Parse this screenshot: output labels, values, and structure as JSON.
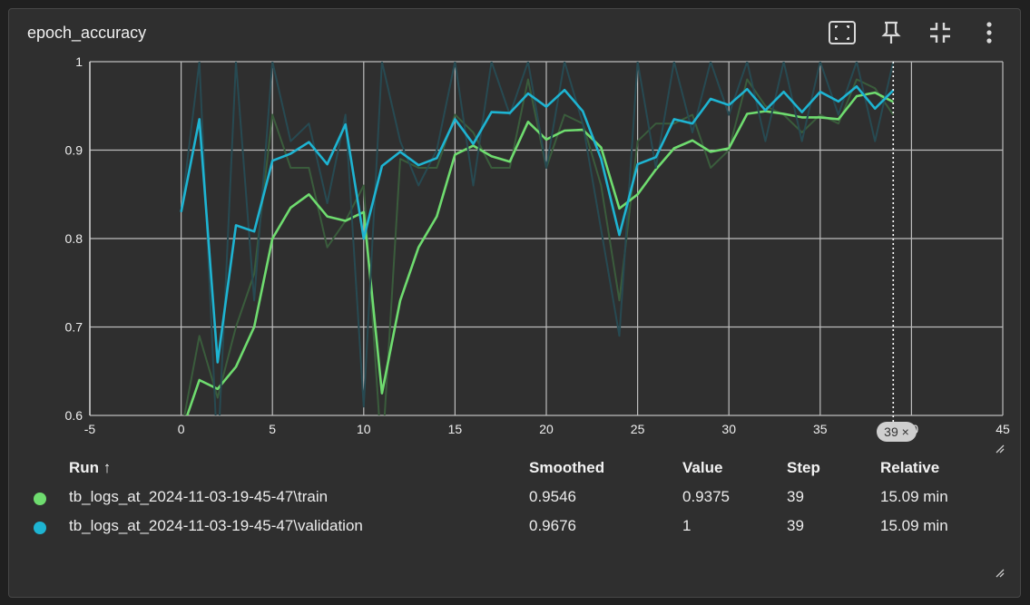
{
  "card": {
    "title": "epoch_accuracy",
    "tools": [
      {
        "name": "fit-to-data-icon"
      },
      {
        "name": "pin-icon"
      },
      {
        "name": "collapse-icon"
      },
      {
        "name": "more-vert-icon"
      }
    ]
  },
  "chart_data": {
    "type": "line",
    "title": "epoch_accuracy",
    "xlim": [
      -5,
      45
    ],
    "ylim": [
      0.6,
      1.0
    ],
    "x_ticks": [
      "-5",
      "0",
      "5",
      "10",
      "15",
      "20",
      "25",
      "30",
      "35",
      "40",
      "45"
    ],
    "y_ticks": [
      "0.6",
      "0.7",
      "0.8",
      "0.9",
      "1"
    ],
    "hover_step": "39",
    "hover_label": "39 ×",
    "series": [
      {
        "name": "train_raw",
        "color": "#3a5c3c",
        "x": [
          0,
          1,
          2,
          3,
          4,
          5,
          6,
          7,
          8,
          9,
          10,
          11,
          12,
          13,
          14,
          15,
          16,
          17,
          18,
          19,
          20,
          21,
          22,
          23,
          24,
          25,
          26,
          27,
          28,
          29,
          30,
          31,
          32,
          33,
          34,
          35,
          36,
          37,
          38,
          39
        ],
        "values": [
          0.58,
          0.69,
          0.62,
          0.7,
          0.76,
          0.94,
          0.88,
          0.88,
          0.79,
          0.82,
          0.86,
          0.55,
          0.89,
          0.88,
          0.88,
          0.94,
          0.92,
          0.88,
          0.88,
          0.98,
          0.88,
          0.94,
          0.93,
          0.86,
          0.73,
          0.91,
          0.93,
          0.93,
          0.94,
          0.88,
          0.9,
          0.98,
          0.95,
          0.94,
          0.92,
          0.94,
          0.93,
          0.98,
          0.97,
          0.94
        ]
      },
      {
        "name": "train",
        "color": "#6fdc6f",
        "x": [
          0,
          1,
          2,
          3,
          4,
          5,
          6,
          7,
          8,
          9,
          10,
          11,
          12,
          13,
          14,
          15,
          16,
          17,
          18,
          19,
          20,
          21,
          22,
          23,
          24,
          25,
          26,
          27,
          28,
          29,
          30,
          31,
          32,
          33,
          34,
          35,
          36,
          37,
          38,
          39
        ],
        "values": [
          0.58,
          0.64,
          0.63,
          0.655,
          0.7,
          0.8,
          0.835,
          0.85,
          0.825,
          0.82,
          0.83,
          0.625,
          0.73,
          0.79,
          0.825,
          0.895,
          0.905,
          0.893,
          0.887,
          0.932,
          0.912,
          0.922,
          0.923,
          0.903,
          0.834,
          0.85,
          0.878,
          0.902,
          0.911,
          0.898,
          0.902,
          0.941,
          0.944,
          0.941,
          0.937,
          0.937,
          0.935,
          0.961,
          0.965,
          0.9546
        ]
      },
      {
        "name": "validation_raw",
        "color": "#274a52",
        "x": [
          0,
          1,
          2,
          3,
          4,
          5,
          6,
          7,
          8,
          9,
          10,
          11,
          12,
          13,
          14,
          15,
          16,
          17,
          18,
          19,
          20,
          21,
          22,
          23,
          24,
          25,
          26,
          27,
          28,
          29,
          30,
          31,
          32,
          33,
          34,
          35,
          36,
          37,
          38,
          39
        ],
        "values": [
          0.83,
          1.0,
          0.55,
          1.0,
          0.73,
          1.0,
          0.91,
          0.93,
          0.84,
          0.94,
          0.61,
          1.0,
          0.91,
          0.86,
          0.9,
          1.0,
          0.86,
          1.0,
          0.94,
          1.0,
          0.88,
          1.0,
          0.93,
          0.81,
          0.69,
          1.0,
          0.88,
          1.0,
          0.92,
          1.0,
          0.94,
          1.0,
          0.91,
          1.0,
          0.91,
          1.0,
          0.94,
          1.0,
          0.91,
          1.0
        ]
      },
      {
        "name": "validation",
        "color": "#1eb4d2",
        "x": [
          0,
          1,
          2,
          3,
          4,
          5,
          6,
          7,
          8,
          9,
          10,
          11,
          12,
          13,
          14,
          15,
          16,
          17,
          18,
          19,
          20,
          21,
          22,
          23,
          24,
          25,
          26,
          27,
          28,
          29,
          30,
          31,
          32,
          33,
          34,
          35,
          36,
          37,
          38,
          39
        ],
        "values": [
          0.83,
          0.935,
          0.66,
          0.815,
          0.808,
          0.888,
          0.896,
          0.909,
          0.884,
          0.929,
          0.8,
          0.882,
          0.898,
          0.883,
          0.891,
          0.935,
          0.907,
          0.943,
          0.942,
          0.964,
          0.949,
          0.968,
          0.944,
          0.89,
          0.804,
          0.884,
          0.892,
          0.935,
          0.93,
          0.958,
          0.951,
          0.969,
          0.945,
          0.966,
          0.943,
          0.966,
          0.955,
          0.972,
          0.947,
          0.9676
        ]
      }
    ]
  },
  "table": {
    "headers": {
      "run": "Run ↑",
      "smoothed": "Smoothed",
      "value": "Value",
      "step": "Step",
      "relative": "Relative"
    },
    "rows": [
      {
        "color": "#6fdc6f",
        "run": "tb_logs_at_2024-11-03-19-45-47\\train",
        "smoothed": "0.9546",
        "value": "0.9375",
        "step": "39",
        "relative": "15.09 min"
      },
      {
        "color": "#1eb4d2",
        "run": "tb_logs_at_2024-11-03-19-45-47\\validation",
        "smoothed": "0.9676",
        "value": "1",
        "step": "39",
        "relative": "15.09 min"
      }
    ]
  }
}
